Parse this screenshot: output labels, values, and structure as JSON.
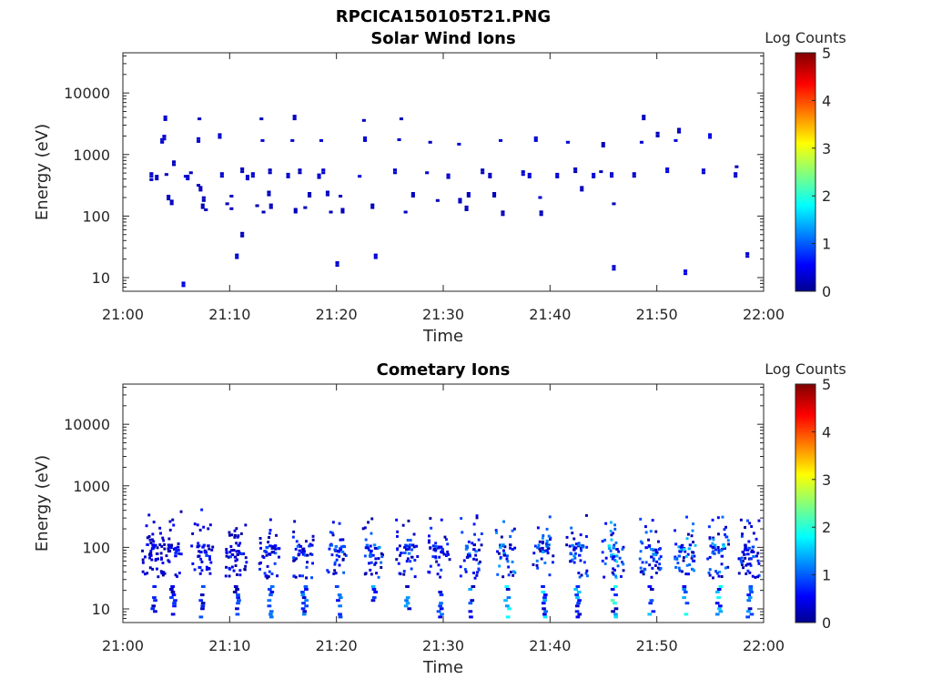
{
  "figure": {
    "title": "RPCICA150105T21.PNG"
  },
  "chart_data": [
    {
      "type": "heatmap",
      "title": "Solar Wind Ions",
      "xlabel": "Time",
      "ylabel": "Energy (eV)",
      "x_ticks": [
        "21:00",
        "21:10",
        "21:20",
        "21:30",
        "21:40",
        "21:50",
        "22:00"
      ],
      "xlim_minutes": [
        0,
        60
      ],
      "y_scale": "log",
      "ylim": [
        6,
        45000
      ],
      "y_ticks": [
        10,
        100,
        1000,
        10000
      ],
      "y_tick_labels": [
        "10",
        "100",
        "1000",
        "10000"
      ],
      "colorbar": {
        "label": "Log Counts",
        "range": [
          0,
          5
        ],
        "ticks": [
          "0",
          "1",
          "2",
          "3",
          "4",
          "5"
        ],
        "colormap": "jet"
      },
      "cells": [
        [
          2.5,
          420,
          0.4
        ],
        [
          2.5,
          370,
          0.4
        ],
        [
          3.0,
          380,
          0.3
        ],
        [
          3.5,
          1500,
          0.4
        ],
        [
          3.7,
          1700,
          0.4
        ],
        [
          3.8,
          3500,
          0.4
        ],
        [
          3.9,
          450,
          0.3
        ],
        [
          4.1,
          180,
          0.3
        ],
        [
          4.4,
          150,
          0.3
        ],
        [
          4.6,
          650,
          0.3
        ],
        [
          5.5,
          7,
          0.5
        ],
        [
          5.7,
          420,
          0.4
        ],
        [
          5.9,
          380,
          0.4
        ],
        [
          6.2,
          480,
          0.3
        ],
        [
          6.9,
          1550,
          0.4
        ],
        [
          6.9,
          300,
          0.4
        ],
        [
          7.0,
          3600,
          0.3
        ],
        [
          7.1,
          250,
          0.3
        ],
        [
          7.3,
          130,
          0.3
        ],
        [
          7.4,
          170,
          0.3
        ],
        [
          7.6,
          120,
          0.3
        ],
        [
          8.9,
          1800,
          0.4
        ],
        [
          9.1,
          420,
          0.4
        ],
        [
          9.6,
          150,
          0.3
        ],
        [
          10.0,
          200,
          0.3
        ],
        [
          10.0,
          125,
          0.3
        ],
        [
          10.5,
          20,
          0.4
        ],
        [
          11.0,
          45,
          0.3
        ],
        [
          11.0,
          500,
          0.3
        ],
        [
          11.5,
          380,
          0.4
        ],
        [
          12.0,
          420,
          0.4
        ],
        [
          12.4,
          140,
          0.3
        ],
        [
          12.8,
          3600,
          0.3
        ],
        [
          12.9,
          1600,
          0.4
        ],
        [
          13.0,
          110,
          0.3
        ],
        [
          13.5,
          210,
          0.3
        ],
        [
          13.6,
          480,
          0.3
        ],
        [
          13.7,
          130,
          0.3
        ],
        [
          15.3,
          410,
          0.4
        ],
        [
          15.7,
          1600,
          0.4
        ],
        [
          15.9,
          3600,
          0.3
        ],
        [
          16.0,
          110,
          0.3
        ],
        [
          16.4,
          480,
          0.3
        ],
        [
          16.9,
          130,
          0.3
        ],
        [
          17.3,
          200,
          0.3
        ],
        [
          18.2,
          400,
          0.4
        ],
        [
          18.6,
          480,
          0.4
        ],
        [
          18.4,
          1600,
          0.4
        ],
        [
          19.0,
          210,
          0.3
        ],
        [
          19.3,
          110,
          0.3
        ],
        [
          19.9,
          15,
          0.4
        ],
        [
          20.2,
          200,
          0.3
        ],
        [
          20.4,
          110,
          0.3
        ],
        [
          22.4,
          3400,
          0.3
        ],
        [
          22.0,
          420,
          0.4
        ],
        [
          22.5,
          1600,
          0.4
        ],
        [
          23.2,
          130,
          0.3
        ],
        [
          23.5,
          20,
          0.4
        ],
        [
          25.3,
          480,
          0.4
        ],
        [
          25.7,
          1650,
          0.4
        ],
        [
          25.9,
          3600,
          0.3
        ],
        [
          26.3,
          110,
          0.3
        ],
        [
          27.0,
          200,
          0.3
        ],
        [
          28.3,
          480,
          0.4
        ],
        [
          28.6,
          1500,
          0.3
        ],
        [
          29.3,
          170,
          0.3
        ],
        [
          30.3,
          400,
          0.4
        ],
        [
          31.3,
          1400,
          0.4
        ],
        [
          31.4,
          160,
          0.3
        ],
        [
          32.2,
          200,
          0.3
        ],
        [
          32.0,
          120,
          0.3
        ],
        [
          33.5,
          480,
          0.3
        ],
        [
          34.2,
          410,
          0.3
        ],
        [
          34.6,
          200,
          0.3
        ],
        [
          35.2,
          1600,
          0.4
        ],
        [
          35.4,
          100,
          0.3
        ],
        [
          37.3,
          450,
          0.4
        ],
        [
          37.9,
          410,
          0.4
        ],
        [
          38.5,
          1600,
          0.4
        ],
        [
          38.9,
          190,
          0.4
        ],
        [
          39.0,
          100,
          0.3
        ],
        [
          40.5,
          410,
          0.4
        ],
        [
          41.5,
          1500,
          0.4
        ],
        [
          42.2,
          500,
          0.3
        ],
        [
          42.8,
          250,
          0.3
        ],
        [
          43.9,
          410,
          0.4
        ],
        [
          44.6,
          500,
          0.3
        ],
        [
          44.8,
          1300,
          0.3
        ],
        [
          45.8,
          13,
          0.4
        ],
        [
          45.8,
          150,
          0.3
        ],
        [
          45.6,
          420,
          0.4
        ],
        [
          47.7,
          420,
          0.4
        ],
        [
          48.4,
          1500,
          0.4
        ],
        [
          48.6,
          3600,
          0.3
        ],
        [
          49.9,
          1900,
          0.3
        ],
        [
          50.8,
          500,
          0.5
        ],
        [
          51.6,
          1600,
          0.5
        ],
        [
          51.9,
          2200,
          0.3
        ],
        [
          52.5,
          11,
          0.5
        ],
        [
          54.2,
          480,
          0.4
        ],
        [
          54.8,
          1800,
          0.5
        ],
        [
          57.2,
          420,
          0.4
        ],
        [
          57.3,
          600,
          0.3
        ],
        [
          58.3,
          21,
          0.4
        ]
      ]
    },
    {
      "type": "heatmap",
      "title": "Cometary Ions",
      "xlabel": "Time",
      "ylabel": "Energy (eV)",
      "x_ticks": [
        "21:00",
        "21:10",
        "21:20",
        "21:30",
        "21:40",
        "21:50",
        "22:00"
      ],
      "xlim_minutes": [
        0,
        60
      ],
      "y_scale": "log",
      "ylim": [
        6,
        45000
      ],
      "y_ticks": [
        10,
        100,
        1000,
        10000
      ],
      "y_tick_labels": [
        "10",
        "100",
        "1000",
        "10000"
      ],
      "colorbar": {
        "label": "Log Counts",
        "range": [
          0,
          5
        ],
        "ticks": [
          "0",
          "1",
          "2",
          "3",
          "4",
          "5"
        ],
        "colormap": "jet"
      },
      "bursts": [
        [
          2.7,
          0.8
        ],
        [
          4.5,
          0.9
        ],
        [
          7.3,
          1.0
        ],
        [
          10.5,
          1.0
        ],
        [
          13.6,
          1.2
        ],
        [
          16.8,
          1.3
        ],
        [
          20.0,
          1.4
        ],
        [
          23.3,
          1.5
        ],
        [
          26.5,
          1.4
        ],
        [
          29.5,
          1.2
        ],
        [
          32.5,
          1.6
        ],
        [
          35.8,
          1.9
        ],
        [
          39.2,
          1.8
        ],
        [
          42.4,
          1.6
        ],
        [
          45.8,
          2.3
        ],
        [
          49.3,
          1.6
        ],
        [
          52.5,
          2.2
        ],
        [
          55.6,
          1.9
        ],
        [
          58.5,
          1.4
        ]
      ]
    }
  ]
}
